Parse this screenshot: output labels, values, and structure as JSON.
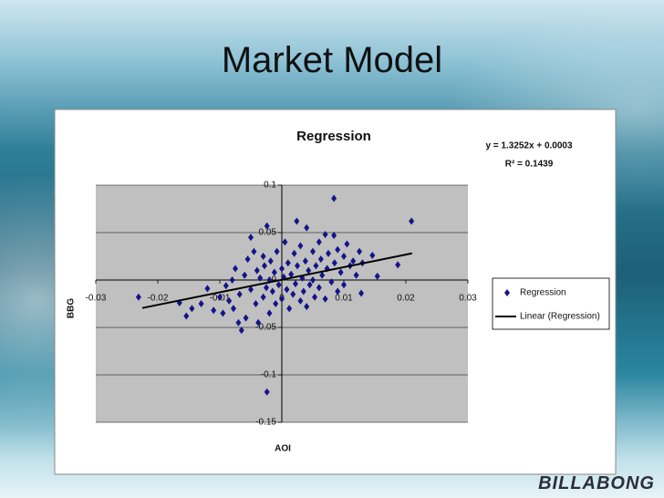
{
  "title": "Market Model",
  "logo": "BILLABONG",
  "chart_data": {
    "type": "scatter",
    "title": "Regression",
    "annotations": [
      "y = 1.3252x + 0.0003",
      "R² = 0.1439"
    ],
    "x_label": "AOI",
    "y_label": "BBG",
    "xlim": [
      -0.03,
      0.03
    ],
    "ylim": [
      -0.15,
      0.1
    ],
    "xticks": [
      -0.03,
      -0.02,
      -0.01,
      0,
      0.01,
      0.02,
      0.03
    ],
    "yticks": [
      0.1,
      0.05,
      0,
      -0.05,
      -0.1,
      -0.15
    ],
    "grid": true,
    "legend": "right",
    "series": [
      {
        "name": "Regression",
        "type": "scatter",
        "color": "#14148a",
        "x": [
          -0.0231,
          -0.0165,
          -0.0154,
          -0.0145,
          -0.013,
          -0.012,
          -0.011,
          -0.01,
          -0.0095,
          -0.009,
          -0.0085,
          -0.008,
          -0.0078,
          -0.0075,
          -0.007,
          -0.0068,
          -0.0065,
          -0.006,
          -0.0058,
          -0.0055,
          -0.005,
          -0.005,
          -0.0045,
          -0.0042,
          -0.004,
          -0.0038,
          -0.0035,
          -0.003,
          -0.003,
          -0.0028,
          -0.0025,
          -0.0024,
          -0.0024,
          -0.002,
          -0.002,
          -0.0018,
          -0.0015,
          -0.0012,
          -0.001,
          -0.0008,
          -0.0005,
          0,
          0,
          0.0003,
          0.0005,
          0.0008,
          0.001,
          0.0012,
          0.0015,
          0.0018,
          0.002,
          0.0022,
          0.0024,
          0.0025,
          0.003,
          0.003,
          0.0033,
          0.0035,
          0.0038,
          0.004,
          0.004,
          0.0043,
          0.0045,
          0.005,
          0.005,
          0.0053,
          0.0055,
          0.006,
          0.006,
          0.0063,
          0.0065,
          0.007,
          0.007,
          0.0073,
          0.0075,
          0.008,
          0.0084,
          0.0084,
          0.0085,
          0.009,
          0.009,
          0.0095,
          0.01,
          0.01,
          0.0105,
          0.011,
          0.0115,
          0.012,
          0.0125,
          0.0128,
          0.013,
          0.0146,
          0.0154,
          0.0187,
          0.0209
        ],
        "values": [
          -0.018,
          -0.024,
          -0.038,
          -0.03,
          -0.025,
          -0.009,
          -0.032,
          -0.018,
          -0.035,
          -0.006,
          -0.022,
          0,
          -0.03,
          0.012,
          -0.045,
          -0.015,
          -0.053,
          0.005,
          -0.04,
          0.022,
          0.045,
          -0.01,
          0.03,
          -0.025,
          0.01,
          -0.045,
          0.002,
          0.025,
          -0.018,
          0.015,
          -0.008,
          0.057,
          -0.118,
          0,
          -0.035,
          0.02,
          -0.012,
          0.008,
          -0.025,
          0.03,
          -0.005,
          0.012,
          -0.02,
          0.003,
          0.04,
          -0.01,
          0.018,
          -0.03,
          0.006,
          -0.015,
          0.028,
          -0.004,
          0.062,
          0.015,
          -0.022,
          0.036,
          0.002,
          -0.012,
          0.02,
          0.055,
          -0.028,
          0.01,
          -0.005,
          0.03,
          0,
          -0.018,
          0.015,
          0.04,
          -0.008,
          0.022,
          0.005,
          0.048,
          -0.02,
          0.012,
          0.028,
          -0.002,
          0.086,
          0.047,
          0.018,
          0.032,
          -0.012,
          0.008,
          0.025,
          -0.005,
          0.038,
          0.015,
          0.02,
          0.005,
          0.03,
          -0.014,
          0.018,
          0.026,
          0.004,
          0.016,
          0.062
        ]
      },
      {
        "name": "Linear (Regression)",
        "type": "line",
        "color": "#000000",
        "x": [
          -0.0225,
          0.021
        ],
        "values": [
          -0.0295,
          0.0281
        ]
      }
    ]
  }
}
